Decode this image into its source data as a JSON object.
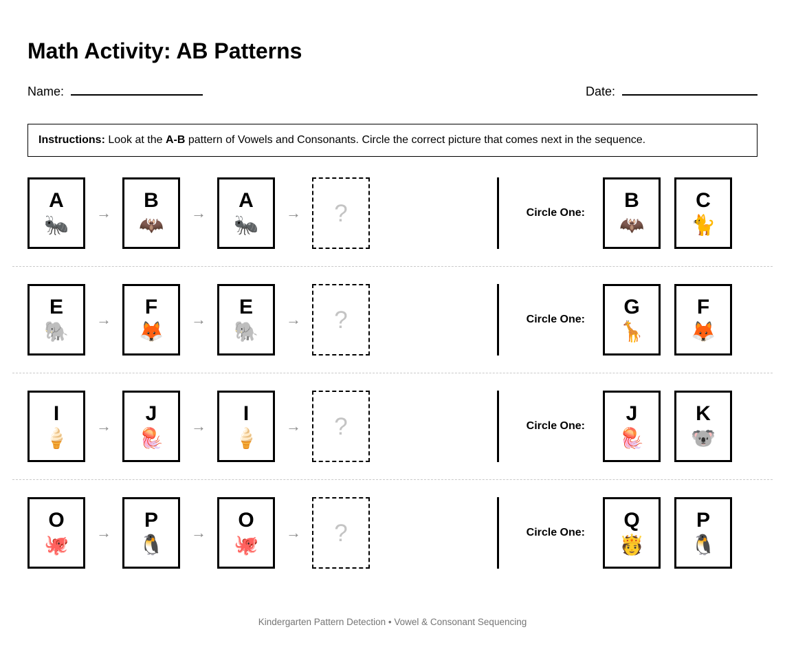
{
  "header": {
    "title": "Math Activity: AB Patterns",
    "name_label": "Name:",
    "date_label": "Date:"
  },
  "instructions": {
    "label": "Instructions:",
    "part1": " Look at the ",
    "pattern": "A-B",
    "part2": " pattern of Vowels and Consonants. Circle the correct picture that comes next in the sequence."
  },
  "labels": {
    "circle_one": "Circle One:",
    "arrow": "→",
    "question_mark": "?"
  },
  "rows": [
    {
      "sequence": [
        {
          "letter": "A",
          "emoji": "🐜",
          "name": "ant"
        },
        {
          "letter": "B",
          "emoji": "🦇",
          "name": "bat"
        },
        {
          "letter": "A",
          "emoji": "🐜",
          "name": "ant"
        }
      ],
      "choices": [
        {
          "letter": "B",
          "emoji": "🦇",
          "name": "bat"
        },
        {
          "letter": "C",
          "emoji": "🐈",
          "name": "cat"
        }
      ]
    },
    {
      "sequence": [
        {
          "letter": "E",
          "emoji": "🐘",
          "name": "elephant"
        },
        {
          "letter": "F",
          "emoji": "🦊",
          "name": "fox"
        },
        {
          "letter": "E",
          "emoji": "🐘",
          "name": "elephant"
        }
      ],
      "choices": [
        {
          "letter": "G",
          "emoji": "🦒",
          "name": "giraffe"
        },
        {
          "letter": "F",
          "emoji": "🦊",
          "name": "fox"
        }
      ]
    },
    {
      "sequence": [
        {
          "letter": "I",
          "emoji": "🍦",
          "name": "ice-cream"
        },
        {
          "letter": "J",
          "emoji": "🪼",
          "name": "jellyfish"
        },
        {
          "letter": "I",
          "emoji": "🍦",
          "name": "ice-cream"
        }
      ],
      "choices": [
        {
          "letter": "J",
          "emoji": "🪼",
          "name": "jellyfish"
        },
        {
          "letter": "K",
          "emoji": "🐨",
          "name": "koala"
        }
      ]
    },
    {
      "sequence": [
        {
          "letter": "O",
          "emoji": "🐙",
          "name": "octopus"
        },
        {
          "letter": "P",
          "emoji": "🐧",
          "name": "penguin"
        },
        {
          "letter": "O",
          "emoji": "🐙",
          "name": "octopus"
        }
      ],
      "choices": [
        {
          "letter": "Q",
          "emoji": "🫅",
          "name": "queen"
        },
        {
          "letter": "P",
          "emoji": "🐧",
          "name": "penguin"
        }
      ]
    }
  ],
  "footer": "Kindergarten Pattern Detection • Vowel & Consonant Sequencing",
  "colors": {
    "card_border": "#000000",
    "arrow": "#8a8a8a",
    "question_mark": "#c4c4c4",
    "separator": "#c9c9c9",
    "footer_text": "#757575"
  }
}
